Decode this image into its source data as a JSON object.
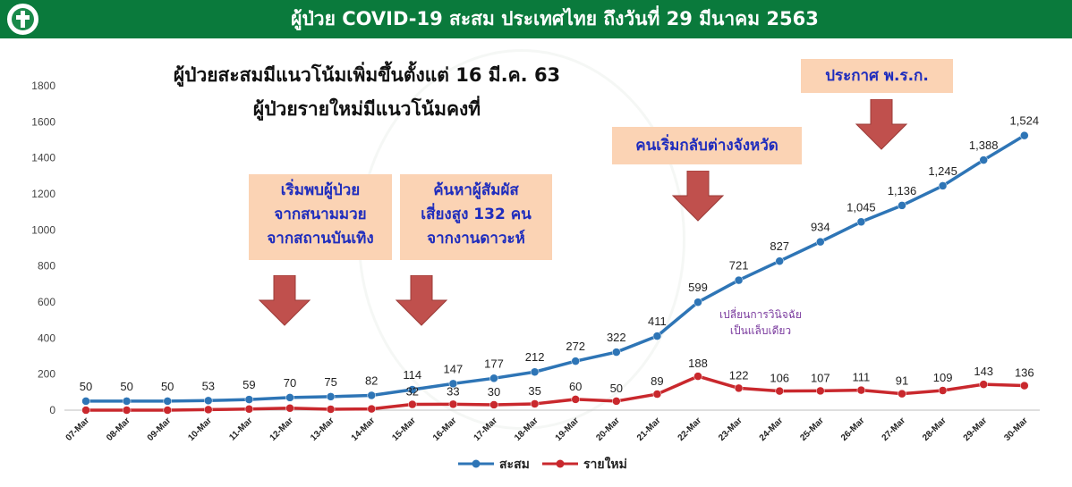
{
  "header": {
    "title": "ผู้ป่วย COVID-19 สะสม  ประเทศไทย ถึงวันที่ 29 มีนาคม 2563"
  },
  "annotations": {
    "heading1": "ผู้ป่วยสะสมมีแนวโน้มเพิ่มขึ้นตั้งแต่ 16 มี.ค. 63",
    "heading2": "ผู้ป่วยรายใหม่มีแนวโน้มคงที่",
    "callout1": [
      "เริ่มพบผู้ป่วย",
      "จากสนามมวย",
      "จากสถานบันเทิง"
    ],
    "callout2": [
      "ค้นหาผู้สัมผัส",
      "เสี่ยงสูง 132 คน",
      "จากงานดาวะห์"
    ],
    "callout3": "คนเริ่มกลับต่างจังหวัด",
    "callout4": "ประกาศ พ.ร.ก.",
    "note": [
      "เปลี่ยนการวินิจฉัย",
      "เป็นแล็บเดียว"
    ]
  },
  "colors": {
    "header_bg": "#0a7a3c",
    "callout_bg": "#fbd3b4",
    "callout_text": "#1f2dbd",
    "arrow": "#c0504d",
    "cumulative": "#2e75b6",
    "new": "#c9282d"
  },
  "chart_data": {
    "type": "line",
    "categories": [
      "07-Mar",
      "08-Mar",
      "09-Mar",
      "10-Mar",
      "11-Mar",
      "12-Mar",
      "13-Mar",
      "14-Mar",
      "15-Mar",
      "16-Mar",
      "17-Mar",
      "18-Mar",
      "19-Mar",
      "20-Mar",
      "21-Mar",
      "22-Mar",
      "23-Mar",
      "24-Mar",
      "25-Mar",
      "26-Mar",
      "27-Mar",
      "28-Mar",
      "29-Mar",
      "30-Mar"
    ],
    "series": [
      {
        "name": "สะสม",
        "color": "#2e75b6",
        "values": [
          50,
          50,
          50,
          53,
          59,
          70,
          75,
          82,
          114,
          147,
          177,
          212,
          272,
          322,
          411,
          599,
          721,
          827,
          934,
          1045,
          1136,
          1245,
          1388,
          1524
        ],
        "labels": [
          "50",
          "50",
          "50",
          "53",
          "59",
          "70",
          "75",
          "82",
          "114",
          "147",
          "177",
          "212",
          "272",
          "322",
          "411",
          "599",
          "721",
          "827",
          "934",
          "1,045",
          "1,136",
          "1,245",
          "1,388",
          "1,524"
        ]
      },
      {
        "name": "รายใหม่",
        "color": "#c9282d",
        "values": [
          0,
          0,
          0,
          3,
          6,
          11,
          5,
          7,
          32,
          33,
          30,
          35,
          60,
          50,
          89,
          188,
          122,
          106,
          107,
          111,
          91,
          109,
          143,
          136
        ],
        "labels": [
          "",
          "",
          "",
          "",
          "",
          "",
          "",
          "",
          "32",
          "33",
          "30",
          "35",
          "60",
          "50",
          "89",
          "188",
          "122",
          "106",
          "107",
          "111",
          "91",
          "109",
          "143",
          "136"
        ]
      }
    ],
    "yticks": [
      "0",
      "200",
      "400",
      "600",
      "800",
      "1000",
      "1200",
      "1400",
      "1600",
      "1800"
    ],
    "ylim": [
      0,
      1800
    ],
    "grid": false,
    "legend": "bottom"
  }
}
